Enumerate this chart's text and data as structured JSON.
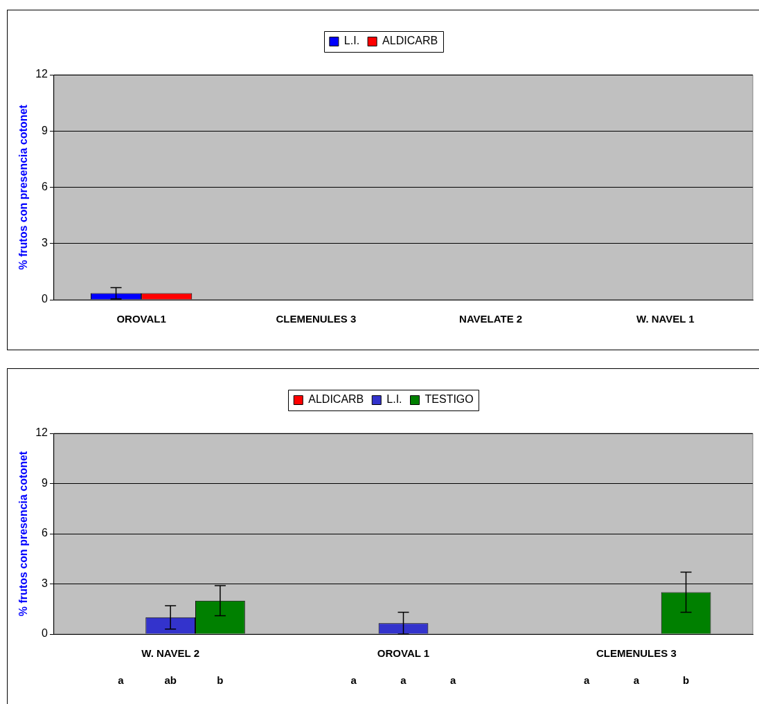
{
  "chart_data": [
    {
      "type": "bar",
      "ylabel": "% frutos con presencia cotonet",
      "categories": [
        "OROVAL1",
        "CLEMENULES 3",
        "NAVELATE 2",
        "W. NAVEL 1"
      ],
      "series": [
        {
          "name": "L.I.",
          "color": "#0000ff",
          "values": [
            0.35,
            0,
            0,
            0
          ],
          "errors": [
            0.3,
            null,
            null,
            null
          ]
        },
        {
          "name": "ALDICARB",
          "color": "#ff0000",
          "values": [
            0.35,
            0,
            0,
            0
          ]
        }
      ],
      "ylim": [
        0,
        12
      ],
      "yticks": [
        0,
        3,
        6,
        9,
        12
      ],
      "grid": "y",
      "legend": "top"
    },
    {
      "type": "bar",
      "ylabel": "% frutos con presencia cotonet",
      "categories": [
        "W. NAVEL 2",
        "OROVAL 1",
        "CLEMENULES 3"
      ],
      "series": [
        {
          "name": "ALDICARB",
          "color": "#ff0000",
          "values": [
            0,
            0,
            0
          ]
        },
        {
          "name": "L.I.",
          "color": "#3333cc",
          "values": [
            1.0,
            0.65,
            0
          ],
          "errors": [
            0.7,
            0.65,
            null
          ]
        },
        {
          "name": "TESTIGO",
          "color": "#008000",
          "values": [
            2.0,
            0,
            2.5
          ],
          "errors": [
            0.9,
            null,
            1.2
          ]
        }
      ],
      "ylim": [
        0,
        12
      ],
      "yticks": [
        0,
        3,
        6,
        9,
        12
      ],
      "grid": "y",
      "legend": "top",
      "annotations": [
        "a",
        "ab",
        "b",
        "a",
        "a",
        "a",
        "a",
        "a",
        "b"
      ]
    }
  ]
}
